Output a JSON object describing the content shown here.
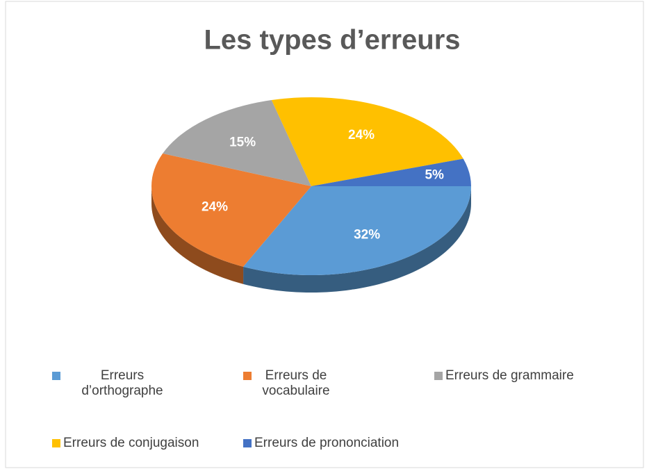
{
  "chart_data": {
    "type": "pie",
    "title": "Les types d’erreurs",
    "categories": [
      "Erreurs d’orthographe",
      "Erreurs de vocabulaire",
      "Erreurs de grammaire",
      "Erreurs de conjugaison",
      "Erreurs de prononciation"
    ],
    "values": [
      32,
      24,
      15,
      24,
      5
    ],
    "value_labels": [
      "32%",
      "24%",
      "15%",
      "24%",
      "5%"
    ],
    "colors": [
      "#5b9bd5",
      "#ed7d31",
      "#a5a5a5",
      "#ffc000",
      "#4472c4"
    ],
    "legend": "bottom"
  }
}
